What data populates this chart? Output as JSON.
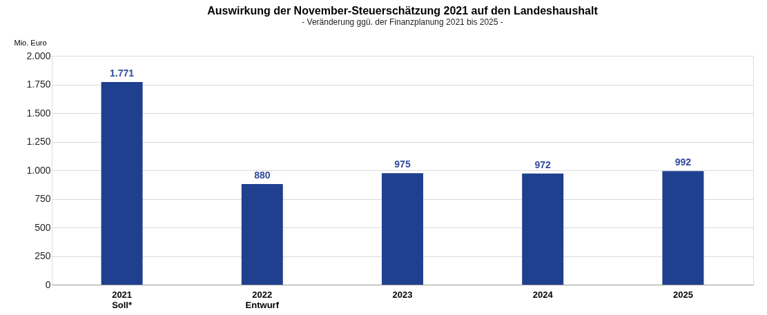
{
  "chart_data": {
    "type": "bar",
    "title": "Auswirkung der November-Steuerschätzung 2021 auf den Landeshaushalt",
    "subtitle": "- Veränderung ggü. der Finanzplanung 2021 bis 2025 -",
    "ylabel": "Mio. Euro",
    "categories": [
      "2021\nSoll*",
      "2022\nEntwurf",
      "2023",
      "2024",
      "2025"
    ],
    "values": [
      1771,
      880,
      975,
      972,
      992
    ],
    "value_labels": [
      "1.771",
      "880",
      "975",
      "972",
      "992"
    ],
    "color": "#1f3f8f",
    "ylim": [
      0,
      2000
    ],
    "yticks": [
      {
        "value": 0,
        "label": "0"
      },
      {
        "value": 250,
        "label": "250"
      },
      {
        "value": 500,
        "label": "500"
      },
      {
        "value": 750,
        "label": "750"
      },
      {
        "value": 1000,
        "label": "1.000"
      },
      {
        "value": 1250,
        "label": "1.250"
      },
      {
        "value": 1500,
        "label": "1.500"
      },
      {
        "value": 1750,
        "label": "1.750"
      },
      {
        "value": 2000,
        "label": "2.000"
      }
    ],
    "grid": "y"
  }
}
